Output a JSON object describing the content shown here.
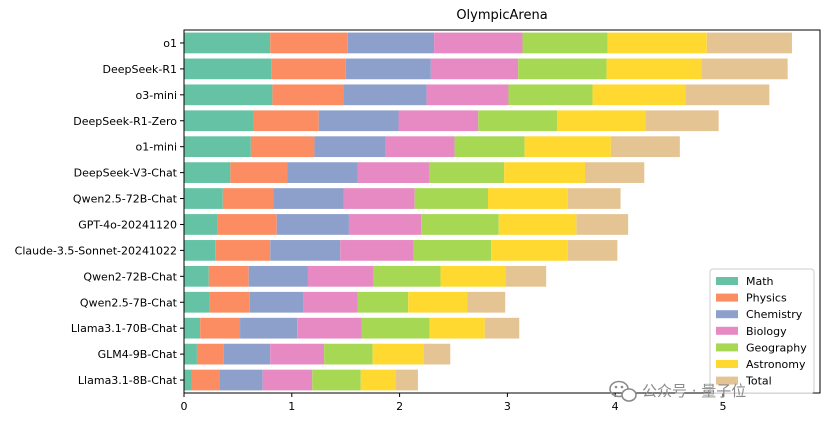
{
  "chart_data": {
    "type": "bar",
    "orientation": "horizontal",
    "stacked": true,
    "title": "OlympicArena",
    "xlabel": "",
    "ylabel": "",
    "xlim": [
      0,
      5.9
    ],
    "xticks": [
      0,
      1,
      2,
      3,
      4,
      5
    ],
    "grid": false,
    "legend_position": "lower-right",
    "categories": [
      "o1",
      "DeepSeek-R1",
      "o3-mini",
      "DeepSeek-R1-Zero",
      "o1-mini",
      "DeepSeek-V3-Chat",
      "Qwen2.5-72B-Chat",
      "GPT-4o-20241120",
      "Claude-3.5-Sonnet-20241022",
      "Qwen2-72B-Chat",
      "Qwen2.5-7B-Chat",
      "Llama3.1-70B-Chat",
      "GLM4-9B-Chat",
      "Llama3.1-8B-Chat"
    ],
    "series": [
      {
        "name": "Math",
        "color": "#66c2a5",
        "values": [
          0.8,
          0.81,
          0.82,
          0.64,
          0.62,
          0.43,
          0.36,
          0.31,
          0.29,
          0.23,
          0.24,
          0.15,
          0.12,
          0.07
        ]
      },
      {
        "name": "Physics",
        "color": "#fc8d62",
        "values": [
          0.72,
          0.69,
          0.66,
          0.61,
          0.59,
          0.53,
          0.47,
          0.55,
          0.51,
          0.37,
          0.37,
          0.37,
          0.25,
          0.26
        ]
      },
      {
        "name": "Chemistry",
        "color": "#8da0cb",
        "values": [
          0.8,
          0.79,
          0.77,
          0.74,
          0.66,
          0.65,
          0.65,
          0.67,
          0.65,
          0.55,
          0.5,
          0.53,
          0.43,
          0.4
        ]
      },
      {
        "name": "Biology",
        "color": "#e78ac3",
        "values": [
          0.82,
          0.81,
          0.76,
          0.74,
          0.64,
          0.67,
          0.66,
          0.67,
          0.68,
          0.61,
          0.5,
          0.6,
          0.5,
          0.46
        ]
      },
      {
        "name": "Geography",
        "color": "#a6d854",
        "values": [
          0.79,
          0.82,
          0.78,
          0.73,
          0.65,
          0.69,
          0.68,
          0.72,
          0.72,
          0.62,
          0.47,
          0.63,
          0.45,
          0.45
        ]
      },
      {
        "name": "Astronomy",
        "color": "#ffd92f",
        "values": [
          0.92,
          0.88,
          0.86,
          0.82,
          0.8,
          0.75,
          0.74,
          0.72,
          0.71,
          0.6,
          0.55,
          0.51,
          0.47,
          0.32
        ]
      },
      {
        "name": "Total",
        "color": "#e5c494",
        "values": [
          0.79,
          0.8,
          0.78,
          0.68,
          0.64,
          0.55,
          0.49,
          0.48,
          0.46,
          0.38,
          0.35,
          0.32,
          0.25,
          0.21
        ]
      }
    ]
  },
  "watermark": {
    "text": "公众号 · 量子位"
  }
}
